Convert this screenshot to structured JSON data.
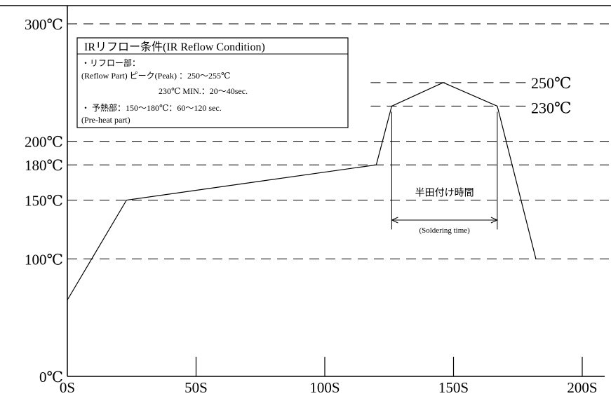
{
  "chart_data": {
    "type": "line",
    "title": "",
    "xlabel": "",
    "ylabel": "",
    "xlim": [
      0,
      200
    ],
    "ylim": [
      0,
      300
    ],
    "x_ticks": [
      0,
      50,
      100,
      150,
      200
    ],
    "x_tick_labels": [
      "0S",
      "50S",
      "100S",
      "150S",
      "200S"
    ],
    "y_ticks": [
      0,
      100,
      150,
      180,
      200,
      300
    ],
    "y_tick_labels": [
      "0℃",
      "100℃",
      "150℃",
      "180℃",
      "200℃",
      "300℃"
    ],
    "reference_lines": [
      100,
      150,
      180,
      200,
      230,
      250,
      300
    ],
    "series": [
      {
        "x": [
          0,
          23,
          120,
          126,
          146,
          167,
          182
        ],
        "y": [
          65,
          150,
          180,
          230,
          250,
          230,
          100
        ]
      }
    ],
    "annotations": {
      "peak_label": "250℃",
      "min_label": "230℃",
      "soldering_time_label": "半田付け時間",
      "soldering_time_sublabel": "(Soldering time)",
      "soldering_time_range": [
        126,
        167
      ]
    },
    "legend_box": {
      "title": "IRリフロー条件(IR Reflow Condition)",
      "lines": [
        "・リフロー部：",
        "(Reflow Part) ピーク(Peak) ：250～255℃",
        "230℃ MIN.：20～40sec.",
        "・ 予熱部：150～180℃：60～120 sec.",
        "(Pre-heat part)"
      ]
    }
  }
}
